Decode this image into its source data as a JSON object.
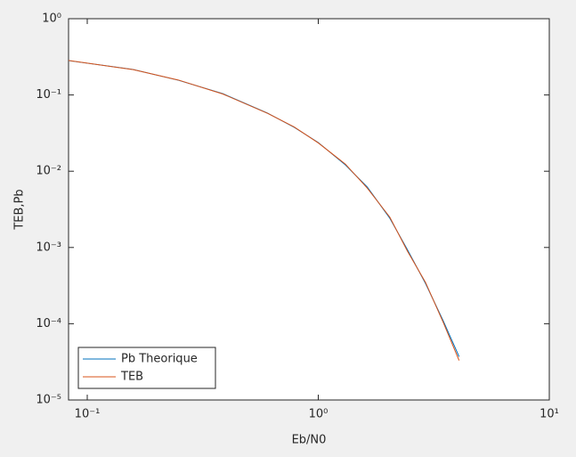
{
  "chart_data": {
    "type": "line",
    "x_label": "Eb/N0",
    "y_label": "TEB,Pb",
    "x": [
      0.083,
      0.158,
      0.248,
      0.386,
      0.603,
      0.787,
      1.0,
      1.31,
      1.63,
      2.04,
      2.43,
      2.91,
      3.47,
      4.07
    ],
    "series": [
      {
        "name": "Pb Theorique",
        "color": "#0072BD",
        "values": [
          0.282,
          0.216,
          0.156,
          0.104,
          0.0578,
          0.0376,
          0.0238,
          0.0121,
          0.0062,
          0.00242,
          0.00094,
          0.000339,
          0.00011,
          3.7e-05
        ]
      },
      {
        "name": "TEB",
        "color": "#D95319",
        "values": [
          0.283,
          0.215,
          0.157,
          0.103,
          0.0575,
          0.038,
          0.0235,
          0.0124,
          0.006,
          0.0025,
          0.0009,
          0.00035,
          0.000105,
          3.3e-05
        ]
      }
    ],
    "xscale": "log",
    "yscale": "log",
    "xlim": [
      0.083,
      10
    ],
    "ylim": [
      1e-05,
      1
    ],
    "xticks": [
      {
        "value": 0.1,
        "label": "10⁻¹"
      },
      {
        "value": 1,
        "label": "10⁰"
      },
      {
        "value": 10,
        "label": "10¹"
      }
    ],
    "yticks": [
      {
        "value": 1e-05,
        "label": "10⁻⁵"
      },
      {
        "value": 0.0001,
        "label": "10⁻⁴"
      },
      {
        "value": 0.001,
        "label": "10⁻³"
      },
      {
        "value": 0.01,
        "label": "10⁻²"
      },
      {
        "value": 0.1,
        "label": "10⁻¹"
      },
      {
        "value": 1,
        "label": "10⁰"
      }
    ],
    "legend": "lower left"
  }
}
